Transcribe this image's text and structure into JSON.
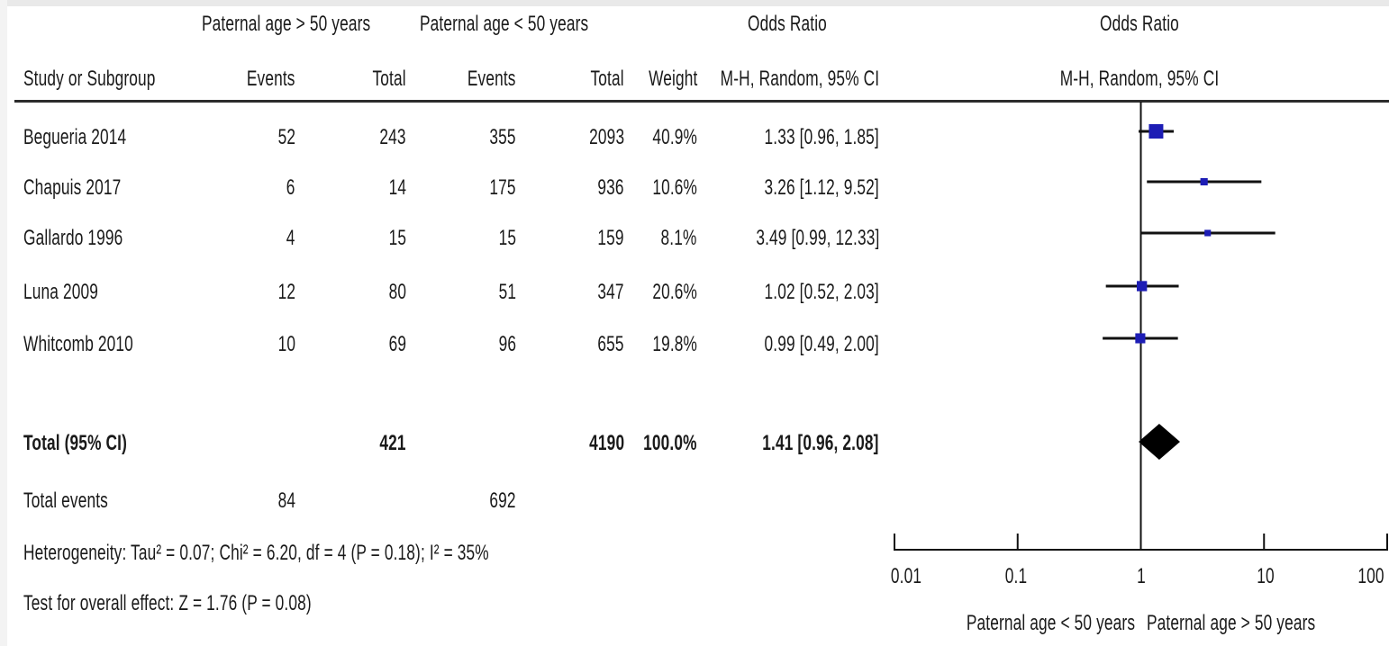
{
  "header": {
    "group1": "Paternal age > 50 years",
    "group2": "Paternal age < 50 years",
    "odds_ratio_left": "Odds Ratio",
    "odds_ratio_right": "Odds Ratio",
    "study_col": "Study or Subgroup",
    "events1": "Events",
    "total1": "Total",
    "events2": "Events",
    "total2": "Total",
    "weight": "Weight",
    "method_left": "M-H, Random, 95% CI",
    "method_right": "M-H, Random, 95% CI"
  },
  "studies": [
    {
      "name": "Begueria 2014",
      "events1": "52",
      "total1": "243",
      "events2": "355",
      "total2": "2093",
      "weight": "40.9%",
      "ci_text": "1.33 [0.96, 1.85]"
    },
    {
      "name": "Chapuis 2017",
      "events1": "6",
      "total1": "14",
      "events2": "175",
      "total2": "936",
      "weight": "10.6%",
      "ci_text": "3.26 [1.12, 9.52]"
    },
    {
      "name": "Gallardo 1996",
      "events1": "4",
      "total1": "15",
      "events2": "15",
      "total2": "159",
      "weight": "8.1%",
      "ci_text": "3.49 [0.99, 12.33]"
    },
    {
      "name": "Luna 2009",
      "events1": "12",
      "total1": "80",
      "events2": "51",
      "total2": "347",
      "weight": "20.6%",
      "ci_text": "1.02 [0.52, 2.03]"
    },
    {
      "name": "Whitcomb 2010",
      "events1": "10",
      "total1": "69",
      "events2": "96",
      "total2": "655",
      "weight": "19.8%",
      "ci_text": "0.99 [0.49, 2.00]"
    }
  ],
  "total": {
    "label": "Total (95% CI)",
    "total1": "421",
    "total2": "4190",
    "weight": "100.0%",
    "ci_text": "1.41 [0.96, 2.08]"
  },
  "total_events": {
    "label": "Total events",
    "events1": "84",
    "events2": "692"
  },
  "heterogeneity": "Heterogeneity: Tau² = 0.07; Chi² = 6.20, df = 4 (P = 0.18); I² = 35%",
  "overall_effect": "Test for overall effect: Z = 1.76 (P = 0.08)",
  "axis": {
    "ticks": [
      "0.01",
      "0.1",
      "1",
      "10",
      "100"
    ],
    "favours_left": "Paternal age < 50 years",
    "favours_right": "Paternal age > 50 years"
  },
  "colors": {
    "marker": "#1d1db5",
    "line": "#111111",
    "diamond": "#000000"
  },
  "chart_data": {
    "type": "forest",
    "scale": "log",
    "xlim": [
      0.01,
      100
    ],
    "studies": [
      {
        "name": "Begueria 2014",
        "or": 1.33,
        "lower": 0.96,
        "upper": 1.85,
        "weight": 40.9
      },
      {
        "name": "Chapuis 2017",
        "or": 3.26,
        "lower": 1.12,
        "upper": 9.52,
        "weight": 10.6
      },
      {
        "name": "Gallardo 1996",
        "or": 3.49,
        "lower": 0.99,
        "upper": 12.33,
        "weight": 8.1
      },
      {
        "name": "Luna 2009",
        "or": 1.02,
        "lower": 0.52,
        "upper": 2.03,
        "weight": 20.6
      },
      {
        "name": "Whitcomb 2010",
        "or": 0.99,
        "lower": 0.49,
        "upper": 2.0,
        "weight": 19.8
      }
    ],
    "pooled": {
      "or": 1.41,
      "lower": 0.96,
      "upper": 2.08
    }
  }
}
